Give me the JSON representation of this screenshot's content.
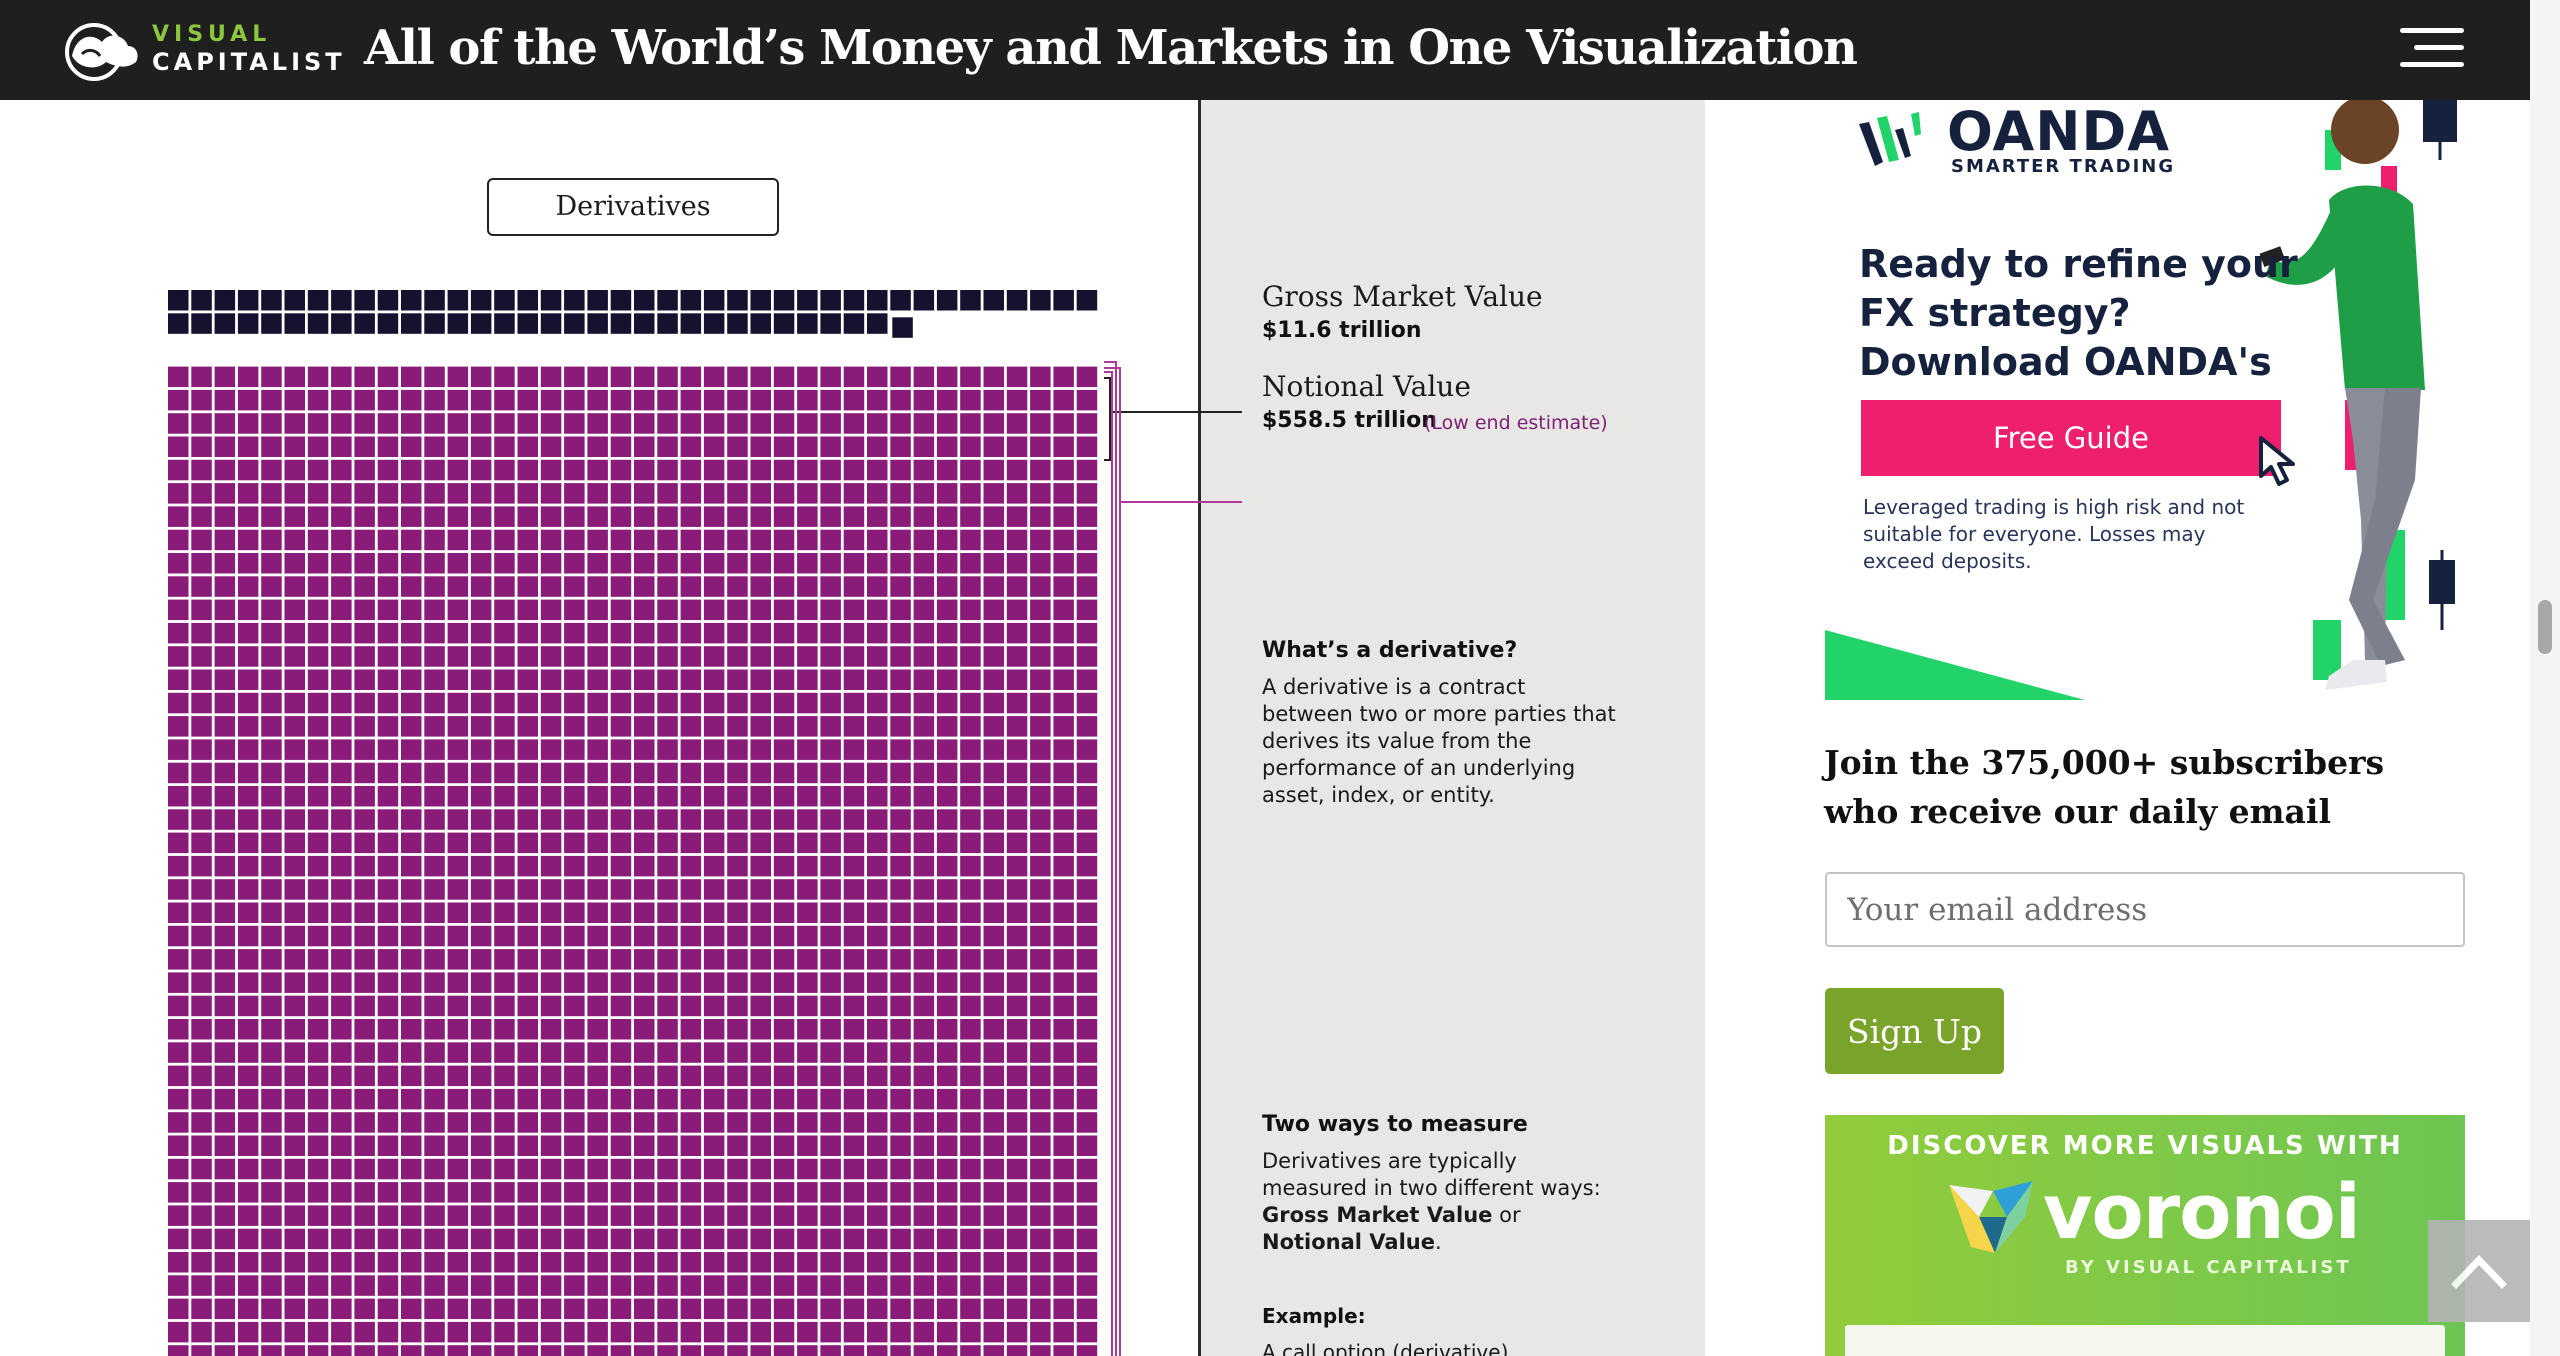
{
  "header": {
    "logo_line1": "VISUAL",
    "logo_line2": "CAPITALIST",
    "title": "All of the World’s Money and Markets in One Visualization",
    "menu_icon": "hamburger-menu-icon"
  },
  "infographic": {
    "section_label": "Derivatives",
    "gross_market_value": {
      "title": "Gross Market Value",
      "value": "$11.6 trillion"
    },
    "notional_value": {
      "title": "Notional Value",
      "value": "$558.5 trillion",
      "note": "(Low end estimate)"
    },
    "whats_a_derivative": {
      "title": "What’s a derivative?",
      "body": "A derivative is a contract between two or more parties that derives its value from the performance of an underlying asset, index, or entity."
    },
    "two_ways": {
      "title": "Two ways to measure",
      "body_start": "Derivatives are typically measured in two different ways: ",
      "term1": "Gross Market Value",
      "connector": " or ",
      "term2": "Notional Value",
      "end": "."
    },
    "example": {
      "title": "Example:",
      "body": "A call option (derivative)"
    },
    "colors": {
      "gross": "#14122e",
      "notional": "#8a1b78",
      "bracket": "#b03a98"
    }
  },
  "ad": {
    "brand": "OANDA",
    "tagline": "SMARTER TRADING",
    "headline": "Ready to refine your FX strategy? Download OANDA's",
    "cta": "Free Guide",
    "disclaimer": "Leveraged trading is high risk and not suitable for everyone. Losses may exceed deposits.",
    "accent": "#ee1f6e"
  },
  "newsletter": {
    "text": "Join the 375,000+ subscribers who receive our daily email",
    "email_placeholder": "Your email address",
    "button": "Sign Up"
  },
  "voronoi": {
    "discover": "DISCOVER MORE VISUALS WITH",
    "brand": "voronoi",
    "by": "BY VISUAL CAPITALIST"
  },
  "scroll_top_icon": "chevron-up-icon"
}
